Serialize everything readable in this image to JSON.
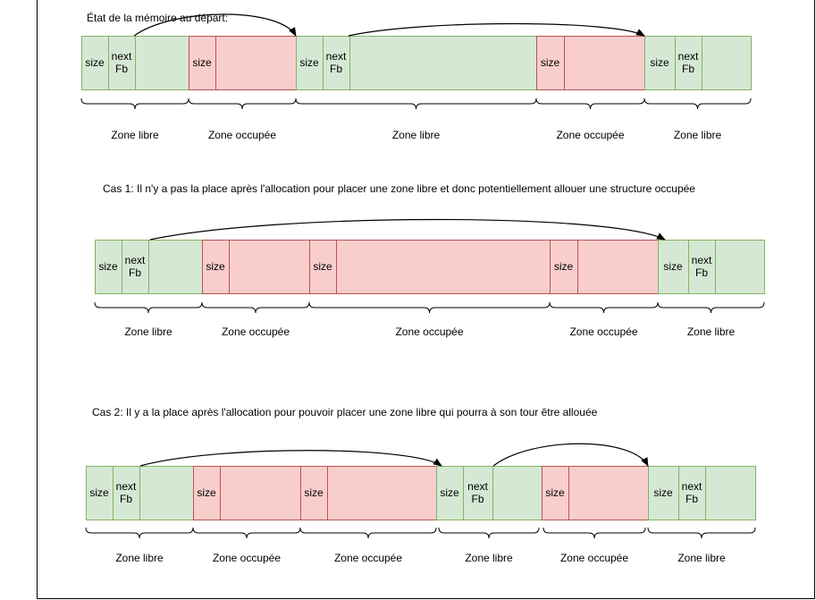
{
  "sections": [
    {
      "caption": "État de la mémoire au départ:",
      "blocks": [
        {
          "kind": "free",
          "cells": [
            "size",
            "next Fb",
            ""
          ]
        },
        {
          "kind": "used",
          "cells": [
            "size",
            ""
          ]
        },
        {
          "kind": "free",
          "cells": [
            "size",
            "next Fb",
            ""
          ]
        },
        {
          "kind": "used",
          "cells": [
            "size",
            ""
          ]
        },
        {
          "kind": "free",
          "cells": [
            "size",
            "next Fb",
            ""
          ]
        }
      ],
      "zones": [
        "Zone libre",
        "Zone occupée",
        "Zone libre",
        "Zone occupée",
        "Zone libre"
      ]
    },
    {
      "caption": "Cas 1: Il n'y a pas la place après l'allocation pour placer une zone libre et donc potentiellement allouer une structure occupée",
      "blocks": [
        {
          "kind": "free",
          "cells": [
            "size",
            "next Fb",
            ""
          ]
        },
        {
          "kind": "used",
          "cells": [
            "size",
            ""
          ]
        },
        {
          "kind": "used",
          "cells": [
            "size",
            ""
          ]
        },
        {
          "kind": "used",
          "cells": [
            "size",
            ""
          ]
        },
        {
          "kind": "free",
          "cells": [
            "size",
            "next Fb",
            ""
          ]
        }
      ],
      "zones": [
        "Zone libre",
        "Zone occupée",
        "Zone occupée",
        "Zone occupée",
        "Zone libre"
      ]
    },
    {
      "caption": "Cas 2: Il y a la place après l'allocation pour pouvoir placer une zone libre qui pourra à son tour être allouée",
      "blocks": [
        {
          "kind": "free",
          "cells": [
            "size",
            "next Fb",
            ""
          ]
        },
        {
          "kind": "used",
          "cells": [
            "size",
            ""
          ]
        },
        {
          "kind": "used",
          "cells": [
            "size",
            ""
          ]
        },
        {
          "kind": "free",
          "cells": [
            "size",
            "next Fb",
            ""
          ]
        },
        {
          "kind": "used",
          "cells": [
            "size",
            ""
          ]
        },
        {
          "kind": "free",
          "cells": [
            "size",
            "next Fb",
            ""
          ]
        }
      ],
      "zones": [
        "Zone libre",
        "Zone occupée",
        "Zone occupée",
        "Zone libre",
        "Zone occupée",
        "Zone libre"
      ]
    }
  ],
  "colors": {
    "free_fill": "#d5e8d4",
    "free_stroke": "#82b366",
    "used_fill": "#f8cecc",
    "used_stroke": "#b85450"
  }
}
